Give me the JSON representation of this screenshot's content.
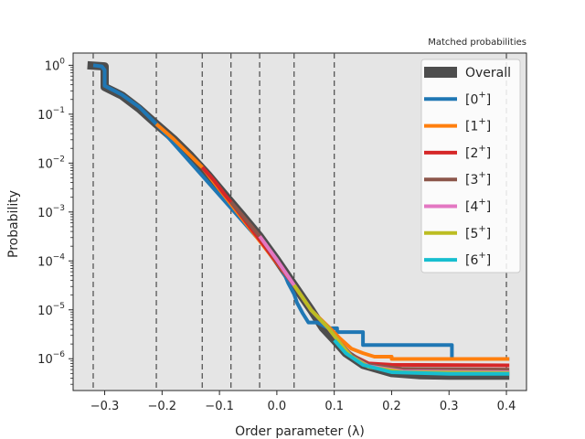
{
  "chart_data": {
    "type": "line",
    "title": "Matched probabilities",
    "xlabel": "Order parameter (λ)",
    "ylabel": "Probability",
    "xlim": [
      -0.355,
      0.435
    ],
    "ylim_log10": [
      -6.65,
      0.25
    ],
    "yscale": "log",
    "grid": false,
    "background": "#e5e5e5",
    "legend_position": "upper-right",
    "x_ticks": [
      -0.3,
      -0.2,
      -0.1,
      0.0,
      0.1,
      0.2,
      0.3,
      0.4
    ],
    "x_tick_labels": [
      "−0.3",
      "−0.2",
      "−0.1",
      "0.0",
      "0.1",
      "0.2",
      "0.3",
      "0.4"
    ],
    "y_ticks": [
      {
        "exp": 0,
        "base": "10",
        "sup": "0"
      },
      {
        "exp": -1,
        "base": "10",
        "sup": "−1"
      },
      {
        "exp": -2,
        "base": "10",
        "sup": "−2"
      },
      {
        "exp": -3,
        "base": "10",
        "sup": "−3"
      },
      {
        "exp": -4,
        "base": "10",
        "sup": "−4"
      },
      {
        "exp": -5,
        "base": "10",
        "sup": "−5"
      },
      {
        "exp": -6,
        "base": "10",
        "sup": "−6"
      }
    ],
    "interfaces": [
      -0.32,
      -0.21,
      -0.13,
      -0.08,
      -0.03,
      0.03,
      0.1,
      0.4
    ],
    "series": [
      {
        "name": "Overall",
        "legend_base": "Overall",
        "legend_sup": "",
        "color": "#4d4d4d",
        "width": 9,
        "points": [
          [
            -0.33,
            1.0
          ],
          [
            -0.3,
            0.95
          ],
          [
            -0.3,
            0.36
          ],
          [
            -0.27,
            0.24
          ],
          [
            -0.24,
            0.13
          ],
          [
            -0.21,
            0.063
          ],
          [
            -0.18,
            0.031
          ],
          [
            -0.15,
            0.014
          ],
          [
            -0.12,
            0.0058
          ],
          [
            -0.09,
            0.0022
          ],
          [
            -0.06,
            0.00085
          ],
          [
            -0.03,
            0.00032
          ],
          [
            0.0,
            0.000105
          ],
          [
            0.03,
            3.2e-05
          ],
          [
            0.06,
            9.8e-06
          ],
          [
            0.08,
            4.3e-06
          ],
          [
            0.1,
            2.4e-06
          ],
          [
            0.12,
            1.3e-06
          ],
          [
            0.15,
            7.5e-07
          ],
          [
            0.2,
            5.1e-07
          ],
          [
            0.25,
            4.6e-07
          ],
          [
            0.3,
            4.5e-07
          ],
          [
            0.405,
            4.5e-07
          ]
        ]
      },
      {
        "name": "[0+]",
        "legend_base": "[0",
        "legend_sup": "+",
        "color": "#1f77b4",
        "width": 4,
        "points": [
          [
            -0.32,
            1.0
          ],
          [
            -0.305,
            0.95
          ],
          [
            -0.3,
            0.8
          ],
          [
            -0.3,
            0.38
          ],
          [
            -0.27,
            0.25
          ],
          [
            -0.24,
            0.14
          ],
          [
            -0.21,
            0.063
          ],
          [
            0.0,
            0.000105
          ],
          [
            0.015,
            4.8e-05
          ],
          [
            0.02,
            3.5e-05
          ],
          [
            0.025,
            2.7e-05
          ],
          [
            0.03,
            2.1e-05
          ],
          [
            0.035,
            1.4e-05
          ],
          [
            0.045,
            8.5e-06
          ],
          [
            0.055,
            5.5e-06
          ],
          [
            0.07,
            5.5e-06
          ],
          [
            0.09,
            4.2e-06
          ],
          [
            0.105,
            4.2e-06
          ],
          [
            0.105,
            3.5e-06
          ],
          [
            0.15,
            3.5e-06
          ],
          [
            0.15,
            1.9e-06
          ],
          [
            0.305,
            1.9e-06
          ],
          [
            0.305,
            9.9e-07
          ],
          [
            0.405,
            9.9e-07
          ]
        ]
      },
      {
        "name": "[1+]",
        "legend_base": "[1",
        "legend_sup": "+",
        "color": "#ff7f0e",
        "width": 4,
        "points": [
          [
            -0.21,
            0.063
          ],
          [
            -0.18,
            0.031
          ],
          [
            -0.15,
            0.014
          ],
          [
            -0.13,
            0.0082
          ],
          [
            0.03,
            3.2e-05
          ],
          [
            0.06,
            9.8e-06
          ],
          [
            0.09,
            4.5e-06
          ],
          [
            0.11,
            2.6e-06
          ],
          [
            0.13,
            1.6e-06
          ],
          [
            0.15,
            1.3e-06
          ],
          [
            0.17,
            1.1e-06
          ],
          [
            0.2,
            1.1e-06
          ],
          [
            0.2,
            9.9e-07
          ],
          [
            0.405,
            9.9e-07
          ]
        ]
      },
      {
        "name": "[2+]",
        "legend_base": "[2",
        "legend_sup": "+",
        "color": "#d62728",
        "width": 4,
        "points": [
          [
            -0.13,
            0.0082
          ],
          [
            -0.11,
            0.0045
          ],
          [
            -0.09,
            0.0022
          ],
          [
            -0.08,
            0.0016
          ],
          [
            0.03,
            3.2e-05
          ],
          [
            0.06,
            9.8e-06
          ],
          [
            0.09,
            4.2e-06
          ],
          [
            0.11,
            2.1e-06
          ],
          [
            0.13,
            1.2e-06
          ],
          [
            0.16,
            8e-07
          ],
          [
            0.2,
            7.5e-07
          ],
          [
            0.405,
            7.3e-07
          ]
        ]
      },
      {
        "name": "[3+]",
        "legend_base": "[3",
        "legend_sup": "+",
        "color": "#8c564b",
        "width": 4,
        "points": [
          [
            -0.08,
            0.0016
          ],
          [
            -0.06,
            0.00085
          ],
          [
            -0.03,
            0.00032
          ],
          [
            0.03,
            3.2e-05
          ],
          [
            0.06,
            9.8e-06
          ],
          [
            0.09,
            4.2e-06
          ],
          [
            0.11,
            2.1e-06
          ],
          [
            0.13,
            1.2e-06
          ],
          [
            0.16,
            7.5e-07
          ],
          [
            0.22,
            6.2e-07
          ],
          [
            0.405,
            6e-07
          ]
        ]
      },
      {
        "name": "[4+]",
        "legend_base": "[4",
        "legend_sup": "+",
        "color": "#e377c2",
        "width": 4,
        "points": [
          [
            -0.03,
            0.00032
          ],
          [
            0.0,
            0.000105
          ],
          [
            0.03,
            3.2e-05
          ],
          [
            0.06,
            9.8e-06
          ],
          [
            0.09,
            4.2e-06
          ],
          [
            0.11,
            2.1e-06
          ],
          [
            0.13,
            1.1e-06
          ],
          [
            0.16,
            7e-07
          ],
          [
            0.22,
            5.5e-07
          ],
          [
            0.405,
            5.3e-07
          ]
        ]
      },
      {
        "name": "[5+]",
        "legend_base": "[5",
        "legend_sup": "+",
        "color": "#bcbd22",
        "width": 4,
        "points": [
          [
            0.03,
            3.2e-05
          ],
          [
            0.06,
            9.8e-06
          ],
          [
            0.09,
            4.2e-06
          ],
          [
            0.11,
            2.1e-06
          ],
          [
            0.13,
            1.1e-06
          ],
          [
            0.16,
            6.8e-07
          ],
          [
            0.22,
            5.3e-07
          ],
          [
            0.405,
            5.1e-07
          ]
        ]
      },
      {
        "name": "[6+]",
        "legend_base": "[6",
        "legend_sup": "+",
        "color": "#17becf",
        "width": 4,
        "points": [
          [
            0.1,
            2.4e-06
          ],
          [
            0.12,
            1.3e-06
          ],
          [
            0.15,
            7.5e-07
          ],
          [
            0.2,
            5.3e-07
          ],
          [
            0.3,
            4.9e-07
          ],
          [
            0.405,
            4.9e-07
          ]
        ]
      }
    ]
  }
}
